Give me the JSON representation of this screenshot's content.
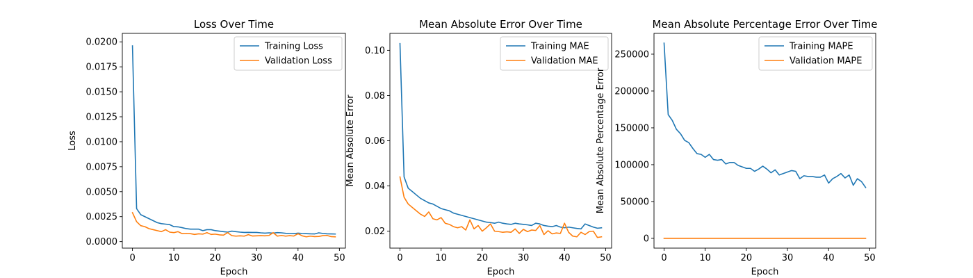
{
  "chart_data": [
    {
      "type": "line",
      "title": "Loss Over Time",
      "xlabel": "Epoch",
      "ylabel": "Loss",
      "xlim": [
        -2.45,
        51.45
      ],
      "ylim": [
        -0.00065,
        0.02085
      ],
      "xticks": [
        0,
        10,
        20,
        30,
        40,
        50
      ],
      "yticks": [
        0.0,
        0.0025,
        0.005,
        0.0075,
        0.01,
        0.0125,
        0.015,
        0.0175,
        0.02
      ],
      "ytick_labels": [
        "0.0000",
        "0.0025",
        "0.0050",
        "0.0075",
        "0.0100",
        "0.0125",
        "0.0150",
        "0.0175",
        "0.0200"
      ],
      "legend": "upper right",
      "series": [
        {
          "name": "Training Loss",
          "color": "#1f77b4",
          "x": [
            0,
            1,
            2,
            3,
            4,
            5,
            6,
            7,
            8,
            9,
            10,
            11,
            12,
            13,
            14,
            15,
            16,
            17,
            18,
            19,
            20,
            21,
            22,
            23,
            24,
            25,
            26,
            27,
            28,
            29,
            30,
            31,
            32,
            33,
            34,
            35,
            36,
            37,
            38,
            39,
            40,
            41,
            42,
            43,
            44,
            45,
            46,
            47,
            48,
            49
          ],
          "values": [
            0.0196,
            0.0033,
            0.0027,
            0.0025,
            0.0023,
            0.0021,
            0.0019,
            0.0018,
            0.00175,
            0.0017,
            0.0015,
            0.00148,
            0.0014,
            0.0013,
            0.00125,
            0.00125,
            0.00125,
            0.0011,
            0.0012,
            0.0012,
            0.0011,
            0.00105,
            0.001,
            0.00095,
            0.00105,
            0.001,
            0.00095,
            0.00092,
            0.00093,
            0.00092,
            0.00092,
            0.00088,
            0.00085,
            0.00088,
            0.00085,
            0.0009,
            0.00088,
            0.00083,
            0.00082,
            0.0008,
            0.00085,
            0.00082,
            0.0008,
            0.00078,
            0.00077,
            0.00088,
            0.00082,
            0.00078,
            0.00077,
            0.00076
          ]
        },
        {
          "name": "Validation Loss",
          "color": "#ff7f0e",
          "x": [
            0,
            1,
            2,
            3,
            4,
            5,
            6,
            7,
            8,
            9,
            10,
            11,
            12,
            13,
            14,
            15,
            16,
            17,
            18,
            19,
            20,
            21,
            22,
            23,
            24,
            25,
            26,
            27,
            28,
            29,
            30,
            31,
            32,
            33,
            34,
            35,
            36,
            37,
            38,
            39,
            40,
            41,
            42,
            43,
            44,
            45,
            46,
            47,
            48,
            49
          ],
          "values": [
            0.0029,
            0.002,
            0.0016,
            0.0015,
            0.0013,
            0.0012,
            0.0011,
            0.001,
            0.0012,
            0.00095,
            0.0009,
            0.001,
            0.0008,
            0.00082,
            0.0008,
            0.00072,
            0.00078,
            0.00075,
            0.0009,
            0.00072,
            0.00075,
            0.00068,
            0.00065,
            0.0009,
            0.0006,
            0.00055,
            0.00058,
            0.00055,
            0.0007,
            0.00056,
            0.00058,
            0.0006,
            0.00058,
            0.00062,
            0.0009,
            0.00055,
            0.00062,
            0.00055,
            0.0006,
            0.00056,
            0.0008,
            0.00058,
            0.00048,
            0.00055,
            0.0005,
            0.00052,
            0.0006,
            0.00062,
            0.0005,
            0.00048
          ]
        }
      ]
    },
    {
      "type": "line",
      "title": "Mean Absolute Error Over Time",
      "xlabel": "Epoch",
      "ylabel": "Mean Absolute Error",
      "xlim": [
        -2.45,
        51.45
      ],
      "ylim": [
        0.0125,
        0.1075
      ],
      "xticks": [
        0,
        10,
        20,
        30,
        40,
        50
      ],
      "yticks": [
        0.02,
        0.04,
        0.06,
        0.08,
        0.1
      ],
      "ytick_labels": [
        "0.02",
        "0.04",
        "0.06",
        "0.08",
        "0.10"
      ],
      "legend": "upper right",
      "series": [
        {
          "name": "Training MAE",
          "color": "#1f77b4",
          "x": [
            0,
            1,
            2,
            3,
            4,
            5,
            6,
            7,
            8,
            9,
            10,
            11,
            12,
            13,
            14,
            15,
            16,
            17,
            18,
            19,
            20,
            21,
            22,
            23,
            24,
            25,
            26,
            27,
            28,
            29,
            30,
            31,
            32,
            33,
            34,
            35,
            36,
            37,
            38,
            39,
            40,
            41,
            42,
            43,
            44,
            45,
            46,
            47,
            48,
            49
          ],
          "values": [
            0.103,
            0.044,
            0.039,
            0.0375,
            0.036,
            0.0345,
            0.0335,
            0.0325,
            0.032,
            0.031,
            0.03,
            0.0295,
            0.029,
            0.028,
            0.0275,
            0.027,
            0.0265,
            0.026,
            0.0255,
            0.025,
            0.0245,
            0.024,
            0.0238,
            0.0235,
            0.024,
            0.0235,
            0.0232,
            0.023,
            0.0235,
            0.0232,
            0.023,
            0.0228,
            0.0225,
            0.0235,
            0.0232,
            0.0225,
            0.0222,
            0.022,
            0.0225,
            0.0218,
            0.0215,
            0.0218,
            0.0215,
            0.0212,
            0.021,
            0.0232,
            0.0225,
            0.0218,
            0.0213,
            0.0215
          ]
        },
        {
          "name": "Validation MAE",
          "color": "#ff7f0e",
          "x": [
            0,
            1,
            2,
            3,
            4,
            5,
            6,
            7,
            8,
            9,
            10,
            11,
            12,
            13,
            14,
            15,
            16,
            17,
            18,
            19,
            20,
            21,
            22,
            23,
            24,
            25,
            26,
            27,
            28,
            29,
            30,
            31,
            32,
            33,
            34,
            35,
            36,
            37,
            38,
            39,
            40,
            41,
            42,
            43,
            44,
            45,
            46,
            47,
            48,
            49
          ],
          "values": [
            0.044,
            0.035,
            0.032,
            0.0305,
            0.029,
            0.0275,
            0.0265,
            0.0285,
            0.0255,
            0.025,
            0.026,
            0.0235,
            0.023,
            0.022,
            0.0215,
            0.022,
            0.0205,
            0.025,
            0.021,
            0.0225,
            0.02,
            0.0215,
            0.0232,
            0.02,
            0.0198,
            0.0195,
            0.0197,
            0.0195,
            0.021,
            0.019,
            0.0208,
            0.0198,
            0.0205,
            0.0203,
            0.0225,
            0.0185,
            0.0202,
            0.0188,
            0.0192,
            0.019,
            0.0235,
            0.0195,
            0.0178,
            0.0175,
            0.0195,
            0.0185,
            0.0198,
            0.02,
            0.0172,
            0.0175
          ]
        }
      ]
    },
    {
      "type": "line",
      "title": "Mean Absolute Percentage Error Over Time",
      "xlabel": "Epoch",
      "ylabel": "Mean Absolute Percentage Error",
      "xlim": [
        -2.45,
        51.45
      ],
      "ylim": [
        -13250,
        278250
      ],
      "xticks": [
        0,
        10,
        20,
        30,
        40,
        50
      ],
      "yticks": [
        0,
        50000,
        100000,
        150000,
        200000,
        250000
      ],
      "ytick_labels": [
        "0",
        "50000",
        "100000",
        "150000",
        "200000",
        "250000"
      ],
      "legend": "upper right",
      "series": [
        {
          "name": "Training MAPE",
          "color": "#1f77b4",
          "x": [
            0,
            1,
            2,
            3,
            4,
            5,
            6,
            7,
            8,
            9,
            10,
            11,
            12,
            13,
            14,
            15,
            16,
            17,
            18,
            19,
            20,
            21,
            22,
            23,
            24,
            25,
            26,
            27,
            28,
            29,
            30,
            31,
            32,
            33,
            34,
            35,
            36,
            37,
            38,
            39,
            40,
            41,
            42,
            43,
            44,
            45,
            46,
            47,
            48,
            49
          ],
          "values": [
            265000,
            168000,
            160000,
            148000,
            142000,
            133000,
            130000,
            122000,
            115000,
            114000,
            110000,
            114000,
            107000,
            106000,
            107000,
            101000,
            103000,
            103000,
            99000,
            97000,
            95000,
            95000,
            91000,
            94000,
            98000,
            94000,
            89000,
            93000,
            86000,
            88000,
            90000,
            92000,
            91000,
            81000,
            85000,
            84000,
            84000,
            83000,
            83000,
            86000,
            75000,
            81000,
            84000,
            88000,
            82000,
            86000,
            72000,
            81000,
            77000,
            69000
          ]
        },
        {
          "name": "Validation MAPE",
          "color": "#ff7f0e",
          "x": [
            0,
            1,
            2,
            3,
            4,
            5,
            6,
            7,
            8,
            9,
            10,
            11,
            12,
            13,
            14,
            15,
            16,
            17,
            18,
            19,
            20,
            21,
            22,
            23,
            24,
            25,
            26,
            27,
            28,
            29,
            30,
            31,
            32,
            33,
            34,
            35,
            36,
            37,
            38,
            39,
            40,
            41,
            42,
            43,
            44,
            45,
            46,
            47,
            48,
            49
          ],
          "values": [
            0,
            0,
            0,
            0,
            0,
            0,
            0,
            0,
            0,
            0,
            0,
            0,
            0,
            0,
            0,
            0,
            0,
            0,
            0,
            0,
            0,
            0,
            0,
            0,
            0,
            0,
            0,
            0,
            0,
            0,
            0,
            0,
            0,
            0,
            0,
            0,
            0,
            0,
            0,
            0,
            0,
            0,
            0,
            0,
            0,
            0,
            0,
            0,
            0,
            0
          ]
        }
      ]
    }
  ]
}
